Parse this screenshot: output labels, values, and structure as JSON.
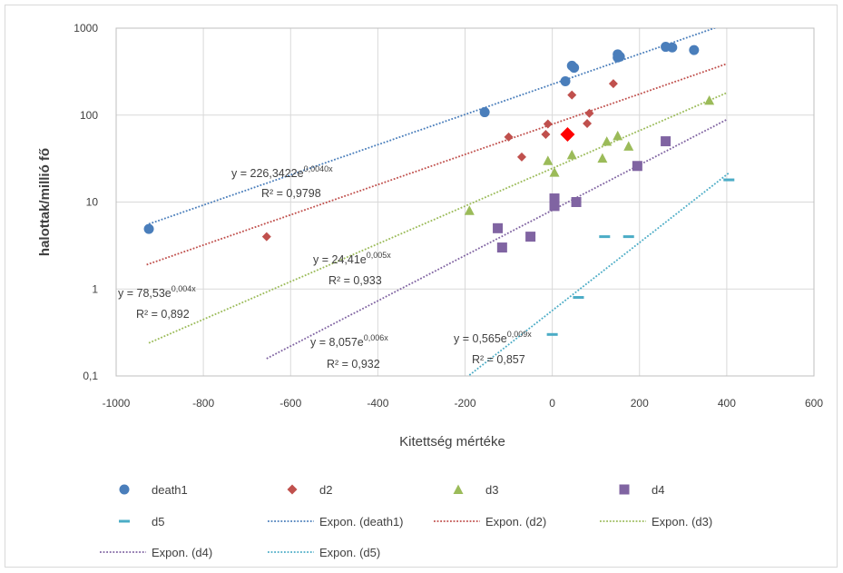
{
  "chart_data": {
    "type": "scatter",
    "x_axis": {
      "label": "Kitettség mértéke",
      "range": [
        -1000,
        600
      ],
      "ticks": [
        -1000,
        -800,
        -600,
        -400,
        -200,
        0,
        200,
        400,
        600
      ],
      "tick_labels": [
        "-1000",
        "-800",
        "-600",
        "-400",
        "-200",
        "0",
        "200",
        "400",
        "600"
      ]
    },
    "y_axis": {
      "label": "halottak/millió fő",
      "scale": "log",
      "range": [
        0.1,
        1000
      ],
      "ticks": [
        0.1,
        1,
        10,
        100,
        1000
      ],
      "tick_labels": [
        "0,1",
        "1",
        "10",
        "100",
        "1000"
      ]
    },
    "grid": true,
    "legend_position": "bottom",
    "series": [
      {
        "name": "death1",
        "marker": "circle",
        "color": "#4a7ebb",
        "points": [
          [
            -925,
            4.9
          ],
          [
            -155,
            108
          ],
          [
            30,
            245
          ],
          [
            45,
            370
          ],
          [
            50,
            350
          ],
          [
            150,
            500
          ],
          [
            150,
            460
          ],
          [
            155,
            470
          ],
          [
            260,
            610
          ],
          [
            275,
            600
          ],
          [
            325,
            560
          ]
        ]
      },
      {
        "name": "d2",
        "marker": "diamond",
        "color": "#c0504d",
        "points": [
          [
            -655,
            4.0
          ],
          [
            -100,
            56
          ],
          [
            -70,
            33
          ],
          [
            -15,
            60
          ],
          [
            -10,
            79
          ],
          [
            45,
            170
          ],
          [
            80,
            80
          ],
          [
            85,
            105
          ],
          [
            140,
            230
          ]
        ]
      },
      {
        "name": "d3",
        "marker": "triangle",
        "color": "#9bbb59",
        "points": [
          [
            -190,
            8.0
          ],
          [
            -10,
            30
          ],
          [
            5,
            22
          ],
          [
            45,
            35
          ],
          [
            115,
            32
          ],
          [
            125,
            50
          ],
          [
            150,
            58
          ],
          [
            175,
            44
          ],
          [
            360,
            148
          ]
        ]
      },
      {
        "name": "d4",
        "marker": "square",
        "color": "#8064a2",
        "points": [
          [
            -125,
            5.0
          ],
          [
            -115,
            3.0
          ],
          [
            -50,
            4.0
          ],
          [
            5,
            9.0
          ],
          [
            5,
            11
          ],
          [
            55,
            10
          ],
          [
            195,
            26
          ],
          [
            260,
            50
          ]
        ]
      },
      {
        "name": "d5",
        "marker": "dash",
        "color": "#4bacc6",
        "points": [
          [
            0,
            0.3
          ],
          [
            60,
            0.8
          ],
          [
            120,
            4.0
          ],
          [
            175,
            4.0
          ],
          [
            405,
            18
          ]
        ]
      }
    ],
    "highlight_point": {
      "x": 35,
      "y": 60,
      "marker": "diamond",
      "color": "#ff0000"
    },
    "trendlines": [
      {
        "name": "Expon. (death1)",
        "series": "death1",
        "a": 226.3422,
        "b": 0.004,
        "x_range": [
          -925,
          405
        ],
        "color": "#4a7ebb",
        "equation": "y = 226,3422e",
        "exponent": "0,0040x",
        "r2": "R² = 0,9798"
      },
      {
        "name": "Expon. (d2)",
        "series": "d2",
        "a": 78.53,
        "b": 0.004,
        "x_range": [
          -930,
          400
        ],
        "color": "#c0504d",
        "equation": "y = 78,53e",
        "exponent": "0,004x",
        "r2": "R² = 0,892"
      },
      {
        "name": "Expon. (d3)",
        "series": "d3",
        "a": 24.41,
        "b": 0.005,
        "x_range": [
          -925,
          400
        ],
        "color": "#9bbb59",
        "equation": "y = 24,41e",
        "exponent": "0,005x",
        "r2": "R² = 0,933"
      },
      {
        "name": "Expon. (d4)",
        "series": "d4",
        "a": 8.057,
        "b": 0.006,
        "x_range": [
          -655,
          400
        ],
        "color": "#8064a2",
        "equation": "y = 8,057e",
        "exponent": "0,006x",
        "r2": "R² = 0,932"
      },
      {
        "name": "Expon. (d5)",
        "series": "d5",
        "a": 0.565,
        "b": 0.009,
        "x_range": [
          -190,
          405
        ],
        "color": "#4bacc6",
        "equation": "y = 0,565e",
        "exponent": "0,009x",
        "r2": "R² = 0,857"
      }
    ]
  }
}
